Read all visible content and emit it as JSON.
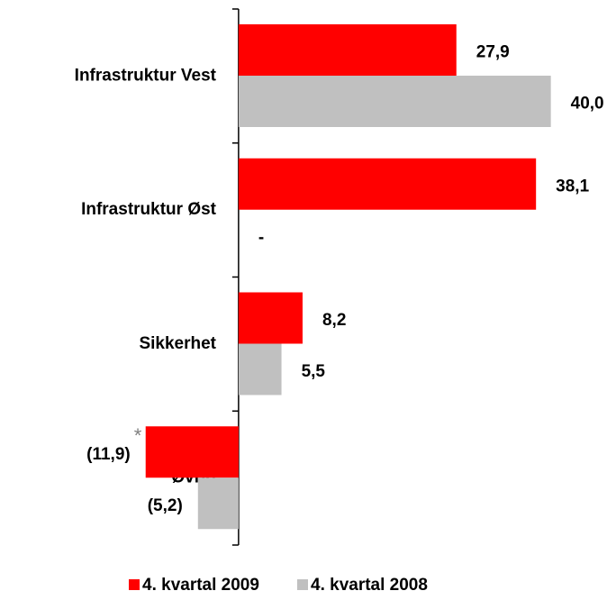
{
  "chart_data": {
    "type": "bar",
    "orientation": "horizontal",
    "categories": [
      "Infrastruktur  Vest",
      "Infrastruktur  Øst",
      "Sikkerhet",
      "Øvrig"
    ],
    "series": [
      {
        "name": "4. kvartal 2009",
        "color": "#ff0000",
        "values": [
          27.9,
          38.1,
          8.2,
          -11.9
        ],
        "value_labels": [
          "27,9",
          "38,1",
          "8,2",
          "(11,9)"
        ]
      },
      {
        "name": "4. kvartal 2008",
        "color": "#c0c0c0",
        "values": [
          40.0,
          0,
          5.5,
          -5.2
        ],
        "value_labels": [
          "40,0",
          "-",
          "5,5",
          "(5,2)"
        ]
      }
    ],
    "annotations": [
      "*"
    ],
    "xlim": [
      -20,
      45
    ],
    "legend": "bottom"
  }
}
